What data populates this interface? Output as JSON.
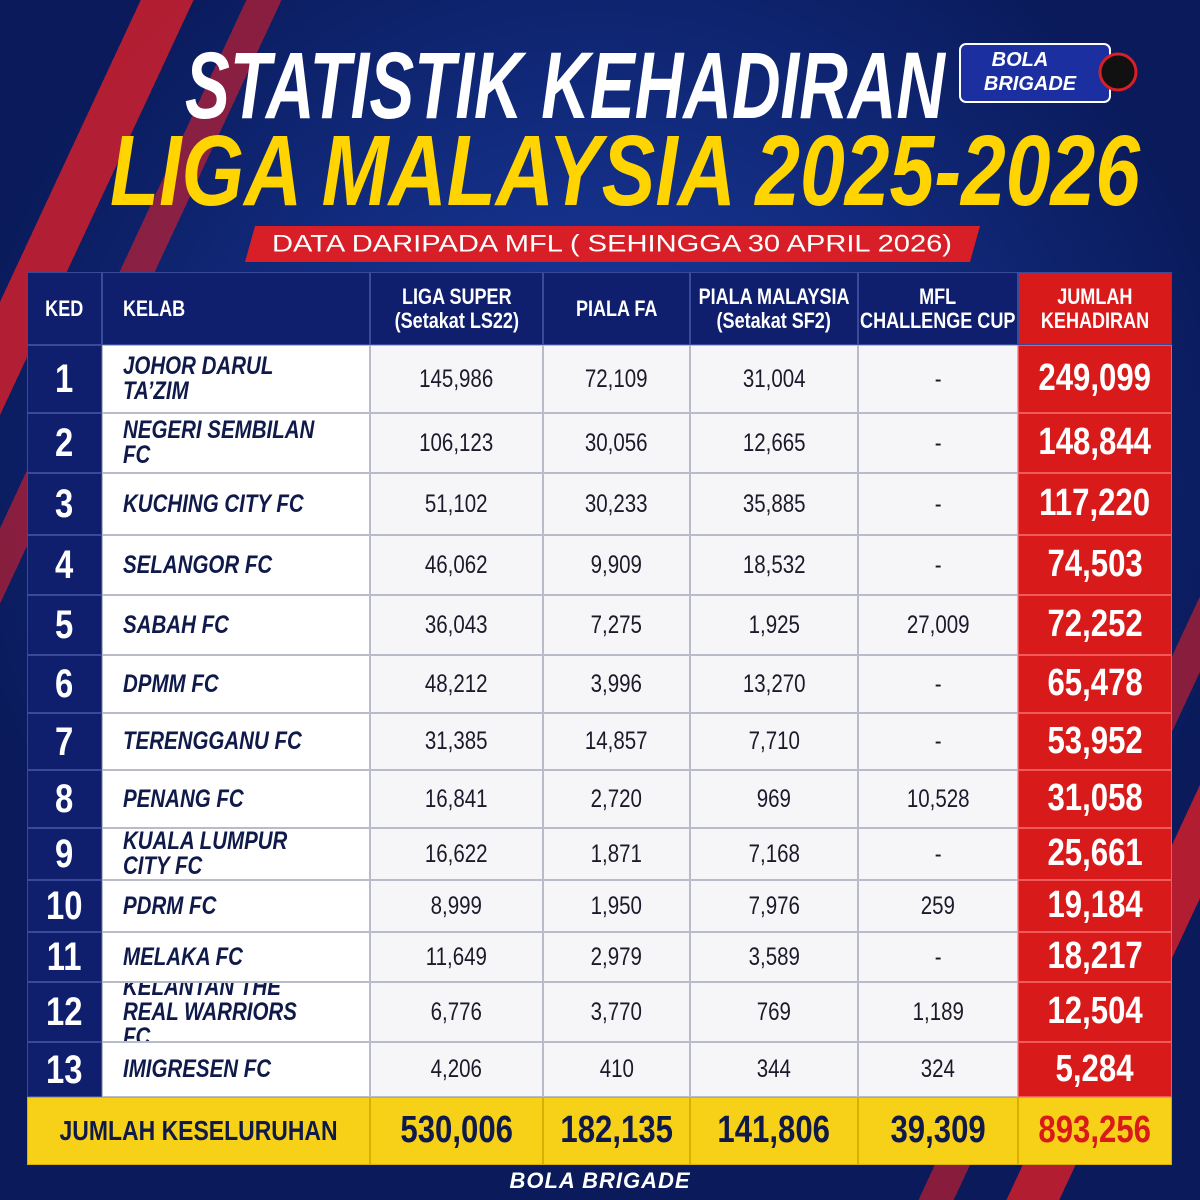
{
  "header": {
    "title": "STATISTIK KEHADIRAN",
    "subtitle": "LIGA MALAYSIA 2025-2026",
    "source": "DATA DARIPADA MFL ( SEHINGGA 30 APRIL 2026)",
    "logo": [
      "BOLA",
      "BRIGADE"
    ]
  },
  "table": {
    "columns": [
      [
        "KED"
      ],
      [
        "KELAB"
      ],
      [
        "LIGA SUPER",
        "(Setakat LS22)"
      ],
      [
        "PIALA FA"
      ],
      [
        "PIALA MALAYSIA",
        "(Setakat SF2)"
      ],
      [
        "MFL",
        "CHALLENGE CUP"
      ],
      [
        "JUMLAH",
        "KEHADIRAN"
      ]
    ],
    "rows": [
      [
        "1",
        "JOHOR DARUL TA’ZIM",
        "145,986",
        "72,109",
        "31,004",
        "-",
        "249,099"
      ],
      [
        "2",
        "NEGERI SEMBILAN FC",
        "106,123",
        "30,056",
        "12,665",
        "-",
        "148,844"
      ],
      [
        "3",
        "KUCHING CITY FC",
        "51,102",
        "30,233",
        "35,885",
        "-",
        "117,220"
      ],
      [
        "4",
        "SELANGOR FC",
        "46,062",
        "9,909",
        "18,532",
        "-",
        "74,503"
      ],
      [
        "5",
        "SABAH FC",
        "36,043",
        "7,275",
        "1,925",
        "27,009",
        "72,252"
      ],
      [
        "6",
        "DPMM FC",
        "48,212",
        "3,996",
        "13,270",
        "-",
        "65,478"
      ],
      [
        "7",
        "TERENGGANU FC",
        "31,385",
        "14,857",
        "7,710",
        "-",
        "53,952"
      ],
      [
        "8",
        "PENANG FC",
        "16,841",
        "2,720",
        "969",
        "10,528",
        "31,058"
      ],
      [
        "9",
        "KUALA LUMPUR CITY FC",
        "16,622",
        "1,871",
        "7,168",
        "-",
        "25,661"
      ],
      [
        "10",
        "PDRM FC",
        "8,999",
        "1,950",
        "7,976",
        "259",
        "19,184"
      ],
      [
        "11",
        "MELAKA FC",
        "11,649",
        "2,979",
        "3,589",
        "-",
        "18,217"
      ],
      [
        "12",
        "KELANTAN THE REAL WARRIORS FC",
        "6,776",
        "3,770",
        "769",
        "1,189",
        "12,504"
      ],
      [
        "13",
        "IMIGRESEN FC",
        "4,206",
        "410",
        "344",
        "324",
        "5,284"
      ]
    ],
    "total": [
      "JUMLAH KESELURUHAN",
      "530,006",
      "182,135",
      "141,806",
      "39,309",
      "893,256"
    ]
  },
  "footer": {
    "brand": "BOLA BRIGADE"
  }
}
